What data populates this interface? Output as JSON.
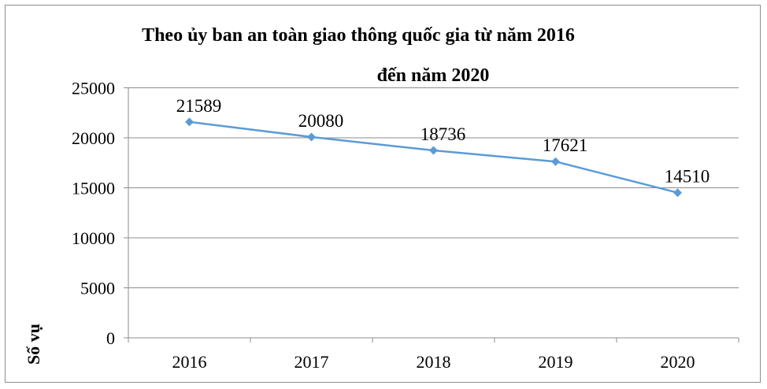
{
  "chart_data": {
    "type": "line",
    "title_line1": "Theo ủy ban an toàn giao thông quốc gia từ năm 2016",
    "title_line2": "đến năm 2020",
    "ylabel": "Số vụ",
    "xlabel": "",
    "categories": [
      "2016",
      "2017",
      "2018",
      "2019",
      "2020"
    ],
    "series": [
      {
        "values": [
          21589,
          20080,
          18736,
          17621,
          14510
        ],
        "color": "#5b9bd5"
      }
    ],
    "ylim": [
      0,
      25000
    ],
    "yticks": [
      0,
      5000,
      10000,
      15000,
      20000,
      25000
    ],
    "grid": true,
    "legend": "none"
  }
}
